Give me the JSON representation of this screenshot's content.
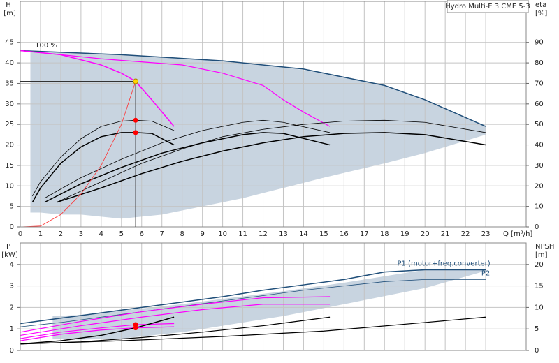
{
  "chart_data": [
    {
      "type": "line",
      "y_label": "H",
      "y_unit": "[m]",
      "y2_label": "eta",
      "y2_unit": "[%]",
      "x_label": "Q [m³/h]",
      "box_label": "Hydro Multi-E 3 CME 5-3",
      "annotation": "100 %",
      "xlim": [
        0,
        25
      ],
      "ylim": [
        0,
        55
      ],
      "y2lim": [
        0,
        110
      ],
      "grid": true,
      "xticks": [
        0,
        1,
        2,
        3,
        4,
        5,
        6,
        7,
        8,
        9,
        10,
        11,
        12,
        13,
        14,
        15,
        16,
        17,
        18,
        19,
        20,
        21,
        22,
        23
      ],
      "yticks": [
        0,
        5,
        10,
        15,
        20,
        25,
        30,
        35,
        40,
        45
      ],
      "y2ticks": [
        0,
        10,
        20,
        30,
        40,
        50,
        60,
        70,
        80,
        90
      ],
      "series": [
        {
          "kind": "area",
          "color": "#c8d4e0",
          "x": [
            0.5,
            1,
            2,
            3,
            4,
            5,
            7,
            9,
            11,
            13,
            15,
            18,
            20,
            23
          ],
          "values": [
            43,
            42.9,
            42.7,
            42.5,
            42.3,
            42,
            41.5,
            40.9,
            40,
            39,
            37.5,
            34.5,
            31,
            24.5
          ],
          "lower": [
            3.5,
            3.5,
            3,
            3,
            2.5,
            2,
            3,
            5,
            7,
            9.5,
            12,
            15.5,
            18,
            22.5
          ]
        },
        {
          "color": "#1f4e79",
          "width": 1.5,
          "x": [
            0,
            5,
            10,
            14,
            16,
            18,
            20,
            23
          ],
          "values": [
            43,
            42,
            40.5,
            38.5,
            36.5,
            34.5,
            31,
            24.5
          ]
        },
        {
          "color": "#ff00ff",
          "width": 1.5,
          "x": [
            0,
            2,
            4,
            5,
            5.7,
            6.5,
            7.6
          ],
          "values": [
            43,
            42,
            39.5,
            37.5,
            35.5,
            31,
            24.5
          ]
        },
        {
          "color": "#ff00ff",
          "width": 1.2,
          "x": [
            0,
            4,
            8,
            10,
            12,
            13,
            14,
            15.3
          ],
          "values": [
            43,
            41,
            39.5,
            37.5,
            34.5,
            31,
            28,
            24.5
          ]
        },
        {
          "color": "#000000",
          "width": 0.8,
          "x": [
            0.6,
            1,
            2,
            3,
            4,
            5,
            5.7,
            6.5,
            7.6
          ],
          "values": [
            7.5,
            11,
            17,
            21.5,
            24.5,
            25.8,
            26,
            25.8,
            23.5
          ]
        },
        {
          "color": "#000000",
          "width": 1.5,
          "x": [
            0.6,
            1,
            2,
            3,
            4,
            5,
            5.7,
            6.5,
            7.6
          ],
          "values": [
            6,
            9.5,
            15.5,
            19.5,
            22,
            23,
            23,
            22.8,
            20
          ]
        },
        {
          "color": "#000000",
          "width": 0.8,
          "x": [
            1.2,
            3,
            5,
            7,
            9,
            11,
            12,
            13,
            15.3
          ],
          "values": [
            7,
            12,
            16.5,
            20.5,
            23.5,
            25.5,
            26,
            25.5,
            23
          ]
        },
        {
          "color": "#000000",
          "width": 1.5,
          "x": [
            1.2,
            3,
            5,
            7,
            9,
            11,
            12,
            13,
            15.3
          ],
          "values": [
            6,
            10.5,
            14.5,
            18,
            20.5,
            22.5,
            23,
            22.8,
            20
          ]
        },
        {
          "color": "#000000",
          "width": 0.8,
          "x": [
            1.8,
            4,
            6,
            8,
            10,
            12,
            14,
            16,
            18,
            20,
            23
          ],
          "values": [
            6,
            11,
            15.5,
            19,
            22,
            23.8,
            25,
            25.8,
            26,
            25.5,
            23
          ]
        },
        {
          "color": "#000000",
          "width": 1.5,
          "x": [
            1.8,
            4,
            6,
            8,
            10,
            12,
            14,
            16,
            18,
            20,
            23
          ],
          "values": [
            6,
            9.5,
            13,
            16,
            18.5,
            20.5,
            22,
            22.8,
            23,
            22.5,
            20
          ]
        },
        {
          "color": "#ff3030",
          "width": 0.8,
          "x": [
            0,
            1,
            2,
            3,
            4,
            5,
            5.7
          ],
          "values": [
            0,
            0.2,
            3,
            8,
            15,
            25,
            35.5
          ]
        }
      ],
      "operating_point": {
        "x": 5.7,
        "y": 35.5,
        "color": "#ffd700"
      },
      "points": [
        {
          "x": 5.7,
          "y": 26,
          "color": "#ff0000"
        },
        {
          "x": 5.7,
          "y": 23,
          "color": "#ff0000"
        }
      ]
    },
    {
      "type": "line",
      "y_label": "P",
      "y_unit": "[kW]",
      "y2_label": "NPSH",
      "y2_unit": "[m]",
      "xlim": [
        0,
        25
      ],
      "ylim": [
        0,
        5
      ],
      "y2lim": [
        0,
        25
      ],
      "grid": true,
      "yticks": [
        0,
        1,
        2,
        3,
        4
      ],
      "y2ticks": [
        0,
        5,
        10,
        15,
        20
      ],
      "series": [
        {
          "kind": "area",
          "color": "#c8d4e0",
          "x": [
            1.6,
            3,
            5,
            8,
            10,
            13,
            16,
            20,
            23
          ],
          "values": [
            1.6,
            1.65,
            1.85,
            2.15,
            2.4,
            2.75,
            3.15,
            3.75,
            3.75
          ],
          "lower": [
            0.55,
            0.5,
            0.55,
            0.85,
            1.15,
            1.6,
            2.15,
            2.9,
            3.7
          ]
        },
        {
          "name": "P1 (motor+freq.converter)",
          "color": "#1f4e79",
          "width": 1.5,
          "x": [
            0,
            2,
            4,
            6,
            8,
            10,
            12,
            14,
            16,
            18,
            20,
            23
          ],
          "values": [
            1.25,
            1.5,
            1.75,
            2,
            2.25,
            2.5,
            2.8,
            3.05,
            3.3,
            3.65,
            3.75,
            3.75
          ]
        },
        {
          "name": "P2",
          "color": "#1f4e79",
          "width": 0.8,
          "x": [
            0,
            2,
            4,
            6,
            8,
            10,
            12,
            14,
            16,
            18,
            20,
            23
          ],
          "values": [
            1.1,
            1.3,
            1.55,
            1.8,
            2.05,
            2.3,
            2.55,
            2.8,
            3,
            3.2,
            3.3,
            3.3
          ]
        },
        {
          "color": "#ff00ff",
          "width": 1.2,
          "x": [
            0,
            2,
            4,
            5.7,
            7.6
          ],
          "values": [
            0.55,
            0.85,
            1.05,
            1.2,
            1.25
          ]
        },
        {
          "color": "#ff00ff",
          "width": 1.2,
          "x": [
            0,
            2,
            4,
            5.7,
            7.6
          ],
          "values": [
            0.45,
            0.75,
            0.95,
            1.05,
            1.1
          ]
        },
        {
          "color": "#ff00ff",
          "width": 1.2,
          "x": [
            0,
            3,
            6,
            9,
            12,
            15.3
          ],
          "values": [
            0.85,
            1.35,
            1.8,
            2.15,
            2.45,
            2.5
          ]
        },
        {
          "color": "#ff00ff",
          "width": 1.2,
          "x": [
            0,
            3,
            6,
            9,
            12,
            15.3
          ],
          "values": [
            0.7,
            1.15,
            1.55,
            1.9,
            2.15,
            2.15
          ]
        },
        {
          "color": "#000000",
          "width": 1.5,
          "axis": "y2",
          "x": [
            0,
            2,
            4,
            5.7,
            7.6
          ],
          "values": [
            1.5,
            2.25,
            3.5,
            5.25,
            7.75
          ]
        },
        {
          "color": "#000000",
          "width": 1.2,
          "axis": "y2",
          "x": [
            0,
            3,
            6,
            9,
            12,
            15.3
          ],
          "values": [
            1.5,
            2,
            3,
            4.25,
            5.75,
            7.75
          ]
        },
        {
          "color": "#000000",
          "width": 1.2,
          "axis": "y2",
          "x": [
            0,
            5,
            10,
            15,
            20,
            23
          ],
          "values": [
            1.5,
            2.25,
            3.25,
            4.5,
            6.5,
            7.75
          ]
        }
      ],
      "points": [
        {
          "x": 5.7,
          "y": 1.2,
          "color": "#ff0000"
        },
        {
          "x": 5.7,
          "y": 1.05,
          "color": "#ff0000"
        }
      ]
    }
  ]
}
